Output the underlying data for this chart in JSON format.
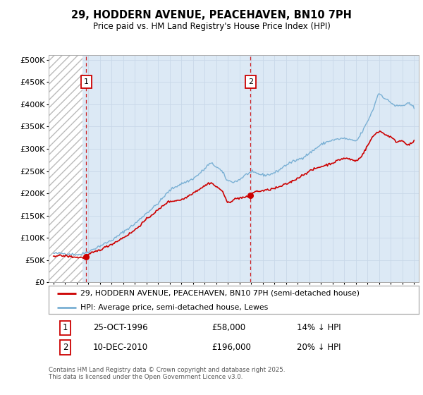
{
  "title": "29, HODDERN AVENUE, PEACEHAVEN, BN10 7PH",
  "subtitle": "Price paid vs. HM Land Registry's House Price Index (HPI)",
  "legend_line1": "29, HODDERN AVENUE, PEACEHAVEN, BN10 7PH (semi-detached house)",
  "legend_line2": "HPI: Average price, semi-detached house, Lewes",
  "annotation1_label": "1",
  "annotation1_date": "25-OCT-1996",
  "annotation1_price": "£58,000",
  "annotation1_note": "14% ↓ HPI",
  "annotation2_label": "2",
  "annotation2_date": "10-DEC-2010",
  "annotation2_price": "£196,000",
  "annotation2_note": "20% ↓ HPI",
  "sale1_x": 1996.82,
  "sale1_y": 58000,
  "sale2_x": 2010.94,
  "sale2_y": 196000,
  "property_color": "#cc0000",
  "hpi_color": "#7ab0d4",
  "annotation_box_color": "#cc0000",
  "vline1_color": "#cc0000",
  "vline2_color": "#cc6666",
  "ylim_min": 0,
  "ylim_max": 510000,
  "yticks": [
    0,
    50000,
    100000,
    150000,
    200000,
    250000,
    300000,
    350000,
    400000,
    450000,
    500000
  ],
  "xlim_min": 1993.6,
  "xlim_max": 2025.4,
  "footer_text": "Contains HM Land Registry data © Crown copyright and database right 2025.\nThis data is licensed under the Open Government Licence v3.0.",
  "background_color": "#dce9f5",
  "hatch_bg": "#f0f0f0"
}
